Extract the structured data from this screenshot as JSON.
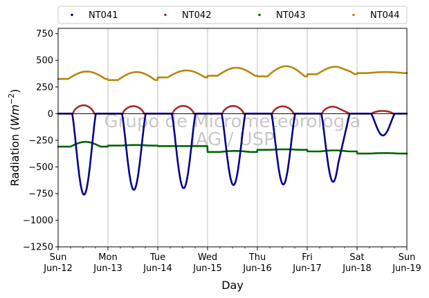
{
  "chart_data": {
    "type": "scatter",
    "xlabel": "Day",
    "ylabel": "Radiation (Wm^{-2})",
    "ylabel_main": "Radiation (",
    "ylabel_unit": "Wm",
    "ylabel_exp": "−2",
    "ylabel_close": ")",
    "x_range_days": [
      0,
      7
    ],
    "ylim": [
      -1250,
      800
    ],
    "yticks": [
      -1250,
      -1000,
      -750,
      -500,
      -250,
      0,
      250,
      500,
      750
    ],
    "ytick_labels": [
      "−1250",
      "−1000",
      "−750",
      "−500",
      "−250",
      "0",
      "250",
      "500",
      "750"
    ],
    "xticks": [
      {
        "day": 0,
        "line1": "Sun",
        "line2": "Jun-12"
      },
      {
        "day": 1,
        "line1": "Mon",
        "line2": "Jun-13"
      },
      {
        "day": 2,
        "line1": "Tue",
        "line2": "Jun-14"
      },
      {
        "day": 3,
        "line1": "Wed",
        "line2": "Jun-15"
      },
      {
        "day": 4,
        "line1": "Thu",
        "line2": "Jun-16"
      },
      {
        "day": 5,
        "line1": "Fri",
        "line2": "Jun-17"
      },
      {
        "day": 6,
        "line1": "Sat",
        "line2": "Jun-18"
      },
      {
        "day": 7,
        "line1": "Sun",
        "line2": "Jun-19"
      }
    ],
    "grid": "vertical",
    "legend_position": "top",
    "watermark_line1": "Grupo de Micrometeorologia",
    "watermark_line2": "IAG / USP",
    "data_gap_days": [
      5.62,
      5.85
    ],
    "series": [
      {
        "name": "NT041",
        "color": "#00008b",
        "daily_min_values": [
          -760,
          -715,
          -700,
          -670,
          -665,
          -640,
          -205
        ]
      },
      {
        "name": "NT042",
        "color": "#a52a2a",
        "daily_max_values": [
          78,
          70,
          72,
          72,
          68,
          65,
          25
        ]
      },
      {
        "name": "NT043",
        "color": "#006400",
        "daily_night_values": [
          -310,
          -300,
          -305,
          -360,
          -340,
          -355,
          -375
        ],
        "daily_day_values": [
          -265,
          -295,
          -305,
          -350,
          -335,
          -345,
          -370
        ]
      },
      {
        "name": "NT044",
        "color": "#b8860b",
        "daily_night_values": [
          325,
          315,
          340,
          355,
          350,
          370,
          380
        ],
        "daily_peak_values": [
          395,
          390,
          405,
          430,
          445,
          440,
          390
        ]
      }
    ]
  }
}
